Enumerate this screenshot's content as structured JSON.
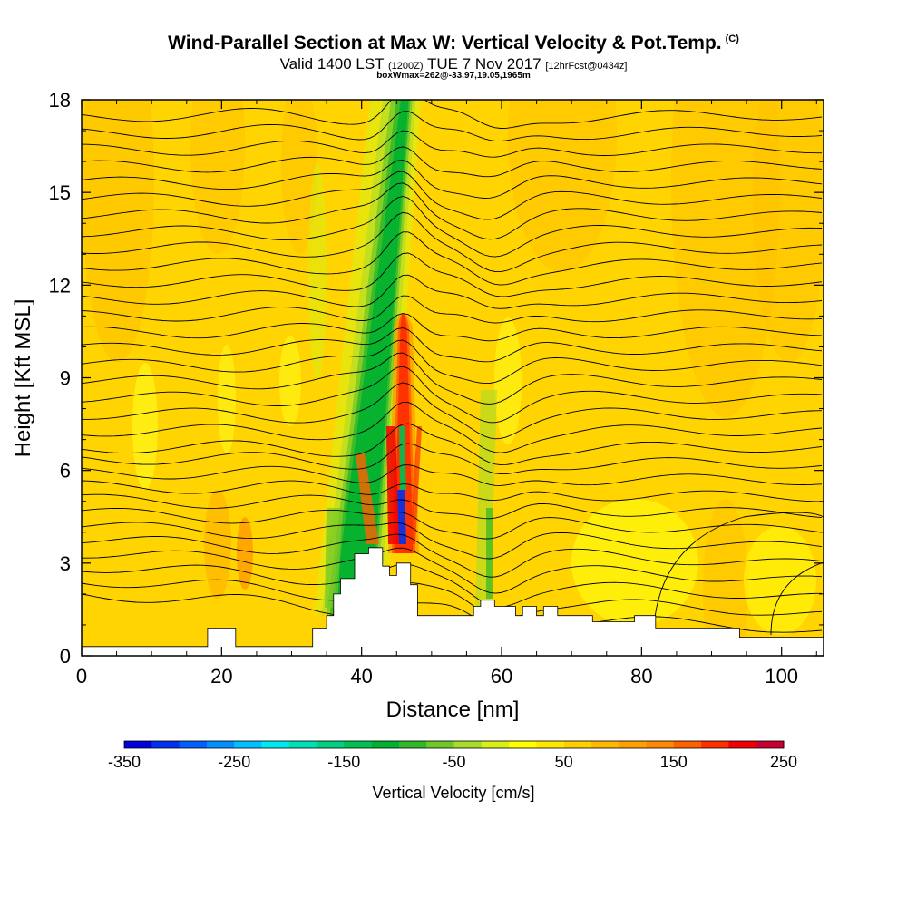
{
  "title": {
    "main": "Wind-Parallel Section at Max W: Vertical Velocity & Pot.Temp.",
    "main_unit": "(C)",
    "valid_prefix": "Valid 1400 LST",
    "valid_utc": "(1200Z)",
    "valid_date": "TUE 7 Nov 2017",
    "forecast": "[12hrFcst@0434z]",
    "box_info": "boxWmax=262@-33.97,19.05,1965m"
  },
  "chart_data": {
    "type": "heatmap",
    "xlabel": "Distance [nm]",
    "ylabel": "Height [Kft MSL]",
    "xlim": [
      0,
      106
    ],
    "ylim": [
      0,
      18
    ],
    "x_ticks": [
      "0",
      "20",
      "40",
      "60",
      "80",
      "100"
    ],
    "y_ticks": [
      "0",
      "3",
      "6",
      "9",
      "12",
      "15",
      "18"
    ],
    "colorbar": {
      "label": "Vertical Velocity [cm/s]",
      "tick_labels": [
        "-350",
        "-250",
        "-150",
        "-50",
        "50",
        "150",
        "250"
      ],
      "min": -350,
      "max": 250,
      "step": 25,
      "colors": [
        "#0000d8",
        "#0030f0",
        "#0060ff",
        "#0090ff",
        "#00c0ff",
        "#00e8f0",
        "#00e0b8",
        "#00d080",
        "#00c050",
        "#00b030",
        "#30b828",
        "#70c828",
        "#a8dc28",
        "#d8f018",
        "#ffff00",
        "#ffe800",
        "#ffd000",
        "#ffb800",
        "#ffa000",
        "#ff8800",
        "#ff6000",
        "#ff3000",
        "#f00000",
        "#c80030"
      ]
    },
    "overlay": "Potential temperature contours (C)",
    "updraft_max_cm_s": 262,
    "updraft_position_nm": 45
  }
}
